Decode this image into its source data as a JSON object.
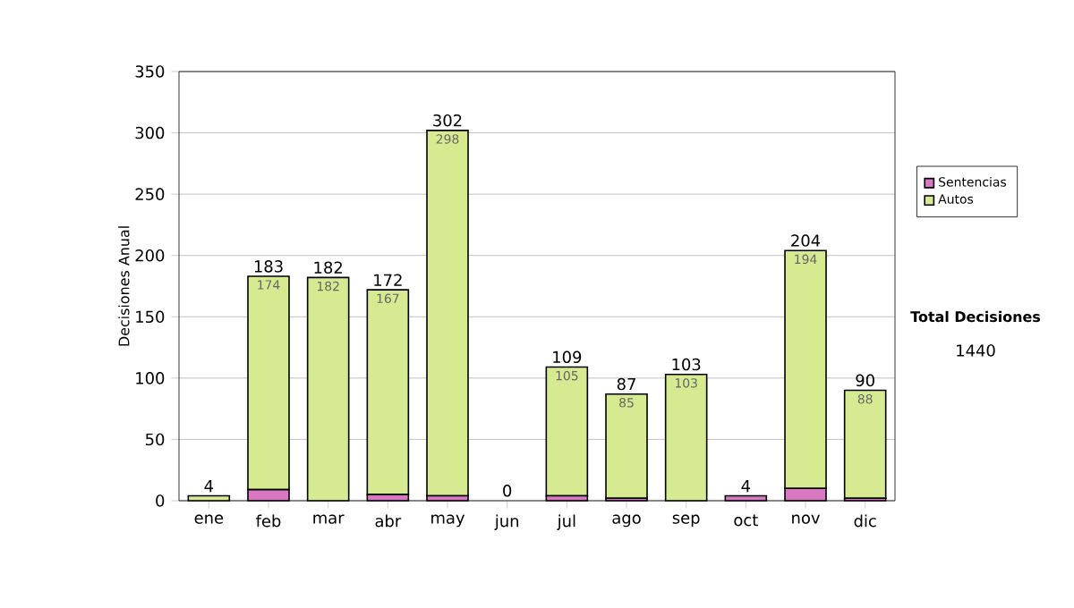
{
  "chart_data": {
    "type": "bar",
    "stacked": true,
    "ylabel": "Decisiones Anual",
    "categories": [
      "ene",
      "feb",
      "mar",
      "abr",
      "may",
      "jun",
      "jul",
      "ago",
      "sep",
      "oct",
      "nov",
      "dic"
    ],
    "series": [
      {
        "name": "Sentencias",
        "color": "#d877c2",
        "values": [
          0,
          9,
          0,
          5,
          4,
          0,
          4,
          2,
          0,
          4,
          10,
          2
        ]
      },
      {
        "name": "Autos",
        "color": "#d6ea92",
        "values": [
          4,
          174,
          182,
          167,
          298,
          0,
          105,
          85,
          103,
          0,
          194,
          88
        ],
        "value_labels": [
          null,
          "174",
          "182",
          "167",
          "298",
          null,
          "105",
          "85",
          "103",
          null,
          "194",
          "88"
        ]
      }
    ],
    "totals": [
      "4",
      "183",
      "182",
      "172",
      "302",
      "0",
      "109",
      "87",
      "103",
      "4",
      "204",
      "90"
    ],
    "ylim": [
      0,
      350
    ],
    "yticks": [
      0,
      50,
      100,
      150,
      200,
      250,
      300,
      350
    ],
    "grid": "y",
    "legend": "right",
    "annotations": [
      "Total Decisiones",
      "1440"
    ]
  }
}
